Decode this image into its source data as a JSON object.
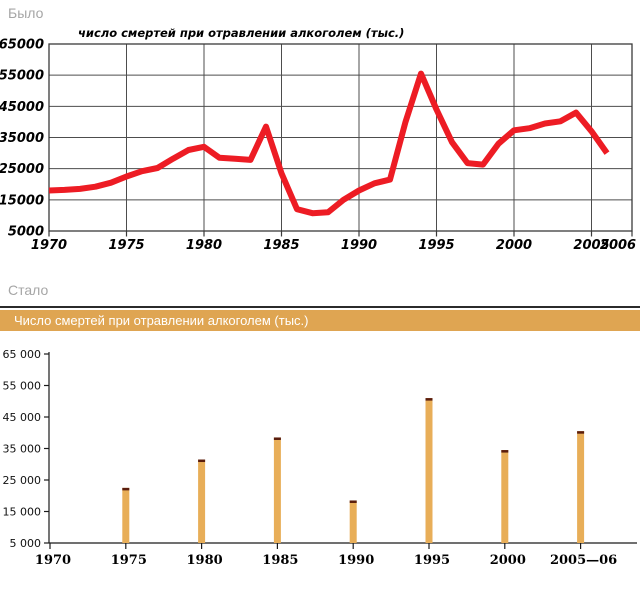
{
  "sections": {
    "before": {
      "label": "Было"
    },
    "after": {
      "label": "Стало",
      "header_title": "Число смертей при отравлении алкоголем (тыс.)"
    }
  },
  "colors": {
    "line_red": "#ED1C24",
    "grid": "#4d4d4d",
    "axis_dark": "#1a1a1a",
    "header_bg": "#DFA552",
    "header_text": "#ffffff",
    "bar_fill": "#E8AE58",
    "bar_cap": "#5A1D0D",
    "section_label_gray": "#a6a6a6"
  },
  "chart_data": [
    {
      "type": "line",
      "title": "число смертей при отравлении алкоголем (тыс.)",
      "series_name": "число смертей при отравлении алкоголем",
      "x": [
        1970,
        1971,
        1972,
        1973,
        1974,
        1975,
        1976,
        1977,
        1978,
        1979,
        1980,
        1981,
        1982,
        1983,
        1984,
        1985,
        1986,
        1987,
        1988,
        1989,
        1990,
        1991,
        1992,
        1993,
        1994,
        1995,
        1996,
        1997,
        1998,
        1999,
        2000,
        2001,
        2002,
        2003,
        2004,
        2005,
        2006
      ],
      "values": [
        18000,
        18200,
        18500,
        19200,
        20500,
        22500,
        24200,
        25200,
        28200,
        31000,
        32000,
        28500,
        28200,
        27800,
        38500,
        23500,
        12000,
        10700,
        11000,
        15000,
        18000,
        20300,
        21500,
        40000,
        55500,
        44000,
        33500,
        26800,
        26300,
        33000,
        37300,
        38000,
        39500,
        40200,
        43000,
        37000,
        30000
      ],
      "x_tick_labels": [
        "1970",
        "1975",
        "1980",
        "1985",
        "1990",
        "1995",
        "2000",
        "2005",
        "2006"
      ],
      "y_ticks": [
        65000,
        55000,
        45000,
        35000,
        25000,
        15000,
        5000
      ],
      "y_tick_labels": [
        "65000",
        "55000",
        "45000",
        "35000",
        "25000",
        "15000",
        "5000"
      ],
      "ylim": [
        5000,
        65000
      ],
      "grid": true,
      "line_color": "#ED1C24"
    },
    {
      "type": "bar",
      "title": "Число смертей при отравлении алкоголем (тыс.)",
      "categories": [
        "1970",
        "1975",
        "1980",
        "1985",
        "1990",
        "1995",
        "2000",
        "2005—06"
      ],
      "values": [
        null,
        22500,
        31500,
        38500,
        18500,
        51000,
        34500,
        40500
      ],
      "y_ticks": [
        65000,
        55000,
        45000,
        35000,
        25000,
        15000,
        5000
      ],
      "y_tick_labels": [
        "65 000",
        "55 000",
        "45 000",
        "35 000",
        "25 000",
        "15 000",
        "5 000"
      ],
      "ylim": [
        5000,
        65000
      ],
      "grid": false,
      "bar_color": "#E8AE58",
      "bar_cap_color": "#5A1D0D"
    }
  ]
}
